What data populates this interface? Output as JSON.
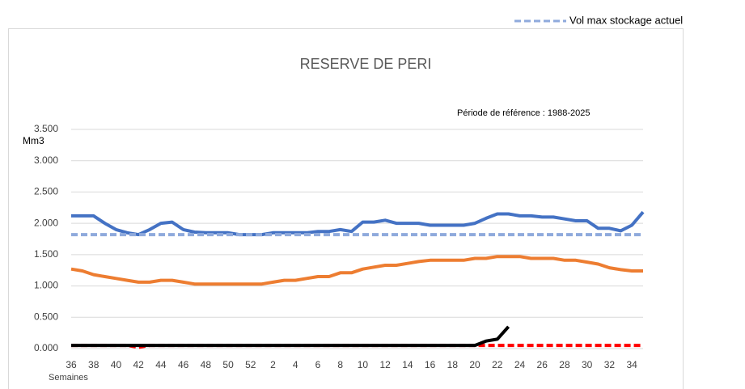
{
  "chart_data": {
    "type": "line",
    "title": "RESERVE  DE PERI",
    "subtitle": "Période de référence : 1988-2025",
    "y_label": "Mm3",
    "x_label": "Semaines",
    "categories": [
      36,
      null,
      38,
      null,
      40,
      null,
      42,
      null,
      44,
      null,
      46,
      null,
      48,
      null,
      50,
      null,
      52,
      null,
      2,
      null,
      4,
      null,
      6,
      null,
      8,
      null,
      10,
      null,
      12,
      null,
      14,
      null,
      16,
      null,
      18,
      null,
      20,
      null,
      22,
      null,
      24,
      null,
      26,
      null,
      28,
      null,
      30,
      null,
      32,
      null,
      34,
      null
    ],
    "ylim": [
      0,
      3.5
    ],
    "yticks": [
      {
        "value": 0,
        "label": "0.000"
      },
      {
        "value": 0.5,
        "label": "0.500"
      },
      {
        "value": 1,
        "label": "1.000"
      },
      {
        "value": 1.5,
        "label": "1.500"
      },
      {
        "value": 2,
        "label": "2.000"
      },
      {
        "value": 2.5,
        "label": "2.500"
      },
      {
        "value": 3,
        "label": "3.000"
      },
      {
        "value": 3.5,
        "label": "3.500"
      }
    ],
    "grid": true,
    "series": [
      {
        "color": "#4472c4",
        "values": [
          2.12,
          2.12,
          2.12,
          2.0,
          1.9,
          1.85,
          1.82,
          1.9,
          2.0,
          2.02,
          1.9,
          1.86,
          1.85,
          1.85,
          1.85,
          1.82,
          1.82,
          1.82,
          1.85,
          1.85,
          1.85,
          1.85,
          1.87,
          1.87,
          1.9,
          1.87,
          2.02,
          2.02,
          2.05,
          2.0,
          2.0,
          2.0,
          1.97,
          1.97,
          1.97,
          1.97,
          2.0,
          2.08,
          2.15,
          2.15,
          2.12,
          2.12,
          2.1,
          2.1,
          2.07,
          2.04,
          2.04,
          1.92,
          1.92,
          1.88,
          1.97,
          2.18
        ]
      },
      {
        "color": "#ed7d31",
        "values": [
          1.27,
          1.24,
          1.18,
          1.15,
          1.12,
          1.09,
          1.06,
          1.06,
          1.09,
          1.09,
          1.06,
          1.03,
          1.03,
          1.03,
          1.03,
          1.03,
          1.03,
          1.03,
          1.06,
          1.09,
          1.09,
          1.12,
          1.15,
          1.15,
          1.21,
          1.21,
          1.27,
          1.3,
          1.33,
          1.33,
          1.36,
          1.39,
          1.41,
          1.41,
          1.41,
          1.41,
          1.44,
          1.44,
          1.47,
          1.47,
          1.47,
          1.44,
          1.44,
          1.44,
          1.41,
          1.41,
          1.38,
          1.35,
          1.29,
          1.26,
          1.24,
          1.24
        ]
      },
      {
        "name": "Vol max stockage actuel",
        "color": "#8faadc",
        "dashed": true,
        "values": [
          1.82,
          1.82,
          1.82,
          1.82,
          1.82,
          1.82,
          1.82,
          1.82,
          1.82,
          1.82,
          1.82,
          1.82,
          1.82,
          1.82,
          1.82,
          1.82,
          1.82,
          1.82,
          1.82,
          1.82,
          1.82,
          1.82,
          1.82,
          1.82,
          1.82,
          1.82,
          1.82,
          1.82,
          1.82,
          1.82,
          1.82,
          1.82,
          1.82,
          1.82,
          1.82,
          1.82,
          1.82,
          1.82,
          1.82,
          1.82,
          1.82,
          1.82,
          1.82,
          1.82,
          1.82,
          1.82,
          1.82,
          1.82,
          1.82,
          1.82,
          1.82,
          1.82
        ]
      },
      {
        "color": "#ff0000",
        "dashed": true,
        "values": [
          0.05,
          0.05,
          0.05,
          0.05,
          0.05,
          0.05,
          0.02,
          0.05,
          0.05,
          0.05,
          0.05,
          0.05,
          0.05,
          0.05,
          0.05,
          0.05,
          0.05,
          0.05,
          0.05,
          0.05,
          0.05,
          0.05,
          0.05,
          0.05,
          0.05,
          0.05,
          0.05,
          0.05,
          0.05,
          0.05,
          0.05,
          0.05,
          0.05,
          0.05,
          0.05,
          0.05,
          0.05,
          0.05,
          0.05,
          0.05,
          0.05,
          0.05,
          0.05,
          0.05,
          0.05,
          0.05,
          0.05,
          0.05,
          0.05,
          0.05,
          0.05,
          0.05
        ]
      },
      {
        "color": "#000000",
        "values": [
          0.05,
          0.05,
          0.05,
          0.05,
          0.05,
          0.05,
          0.05,
          0.05,
          0.05,
          0.05,
          0.05,
          0.05,
          0.05,
          0.05,
          0.05,
          0.05,
          0.05,
          0.05,
          0.05,
          0.05,
          0.05,
          0.05,
          0.05,
          0.05,
          0.05,
          0.05,
          0.05,
          0.05,
          0.05,
          0.05,
          0.05,
          0.05,
          0.05,
          0.05,
          0.05,
          0.05,
          0.05,
          0.12,
          0.15,
          0.35,
          null,
          null,
          null,
          null,
          null,
          null,
          null,
          null,
          null,
          null,
          null,
          null
        ]
      }
    ]
  }
}
